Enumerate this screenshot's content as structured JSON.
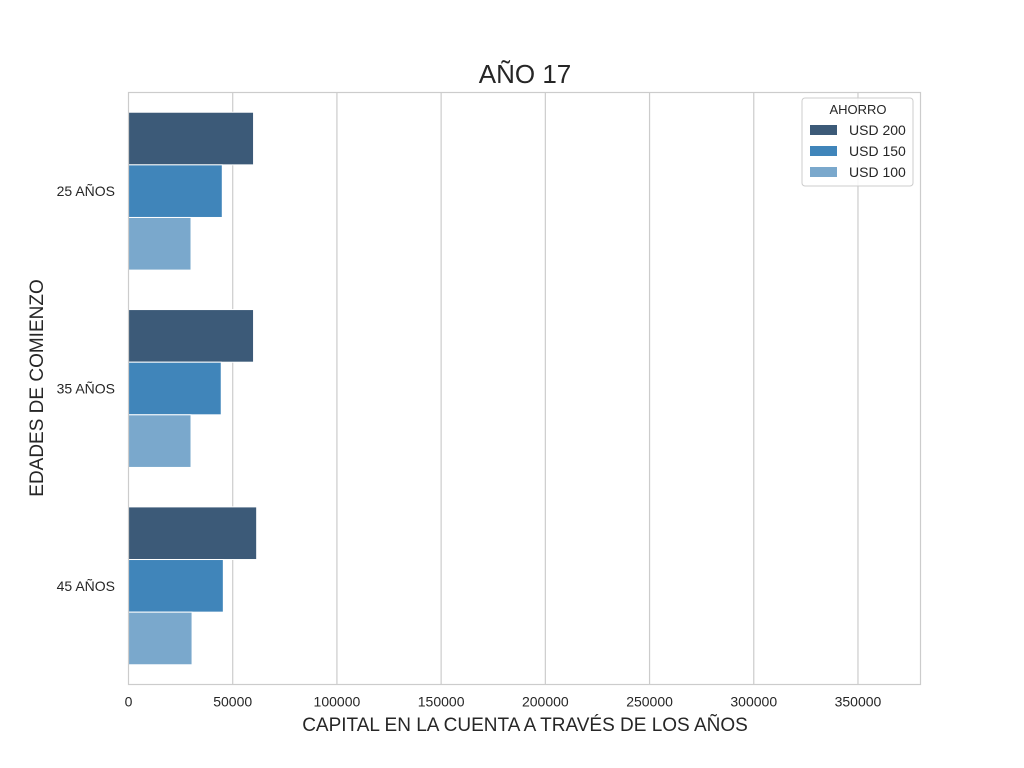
{
  "chart_data": {
    "type": "bar",
    "orientation": "horizontal",
    "title": "AÑO 17",
    "xlabel": "CAPITAL EN LA CUENTA A TRAVÉS DE LOS AÑOS",
    "ylabel": "EDADES DE COMIENZO",
    "categories": [
      "25 AÑOS",
      "35 AÑOS",
      "45 AÑOS"
    ],
    "series": [
      {
        "name": "USD 200",
        "color": "#3c5a78",
        "values": [
          60000,
          60000,
          61500
        ]
      },
      {
        "name": "USD 150",
        "color": "#4085ba",
        "values": [
          45000,
          44500,
          45500
        ]
      },
      {
        "name": "USD 100",
        "color": "#7aa8cc",
        "values": [
          30000,
          30000,
          30500
        ]
      }
    ],
    "xlim": [
      0,
      380000
    ],
    "xticks": [
      0,
      50000,
      100000,
      150000,
      200000,
      250000,
      300000,
      350000
    ],
    "xtick_labels": [
      "0",
      "50000",
      "100000",
      "150000",
      "200000",
      "250000",
      "300000",
      "350000"
    ],
    "grid": "vertical",
    "legend": {
      "title": "AHORRO",
      "placement": "top-right"
    }
  }
}
